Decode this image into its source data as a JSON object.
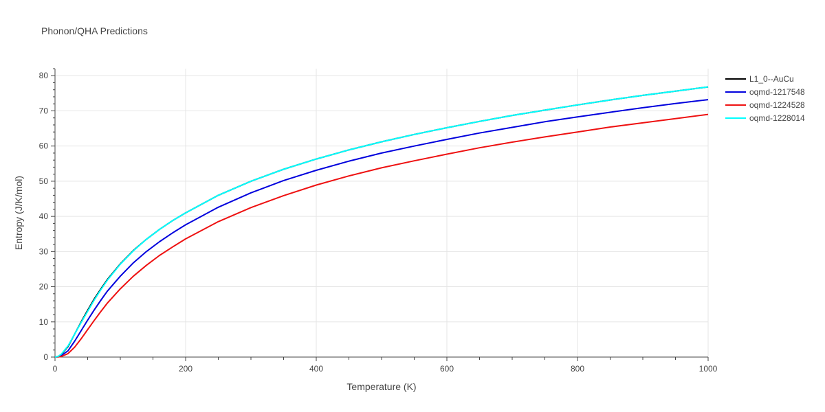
{
  "chart_data": {
    "type": "line",
    "title": "Phonon/QHA Predictions",
    "xlabel": "Temperature (K)",
    "ylabel": "Entropy (J/K/mol)",
    "xlim": [
      0,
      1000
    ],
    "ylim": [
      0,
      82
    ],
    "xticks": [
      0,
      200,
      400,
      600,
      800,
      1000
    ],
    "yticks": [
      0,
      10,
      20,
      30,
      40,
      50,
      60,
      70,
      80
    ],
    "xtick_labels": [
      "0",
      "200",
      "400",
      "600",
      "800",
      "1000"
    ],
    "ytick_labels": [
      "0",
      "10",
      "20",
      "30",
      "40",
      "50",
      "60",
      "70",
      "80"
    ],
    "grid": true,
    "legend_position": "top-right",
    "series": [
      {
        "name": "L1_0--AuCu",
        "color": "#000000",
        "x": [
          0,
          5,
          10,
          20,
          30,
          40,
          50,
          60,
          70,
          80,
          100,
          120,
          140,
          160,
          180,
          200,
          250,
          300,
          350,
          400,
          450,
          500,
          550,
          600,
          650,
          700,
          750,
          800,
          850,
          900,
          950,
          1000
        ],
        "y": [
          0,
          0.2,
          0.8,
          3.0,
          6.5,
          10.0,
          13.3,
          16.5,
          19.3,
          22.0,
          26.5,
          30.3,
          33.5,
          36.3,
          38.8,
          41.0,
          46.0,
          50.0,
          53.4,
          56.3,
          58.9,
          61.2,
          63.3,
          65.2,
          67.0,
          68.7,
          70.2,
          71.7,
          73.1,
          74.4,
          75.6,
          76.8
        ]
      },
      {
        "name": "oqmd-1217548",
        "color": "#0000dd",
        "x": [
          0,
          5,
          10,
          20,
          30,
          40,
          50,
          60,
          70,
          80,
          100,
          120,
          140,
          160,
          180,
          200,
          250,
          300,
          350,
          400,
          450,
          500,
          550,
          600,
          650,
          700,
          750,
          800,
          850,
          900,
          950,
          1000
        ],
        "y": [
          0,
          0.1,
          0.5,
          1.8,
          4.5,
          7.5,
          10.5,
          13.4,
          16.1,
          18.7,
          23.0,
          26.8,
          30.0,
          32.8,
          35.3,
          37.6,
          42.6,
          46.7,
          50.2,
          53.1,
          55.7,
          58.0,
          60.0,
          61.9,
          63.7,
          65.3,
          66.9,
          68.3,
          69.6,
          70.9,
          72.1,
          73.2
        ]
      },
      {
        "name": "oqmd-1224528",
        "color": "#ee1111",
        "x": [
          0,
          5,
          10,
          20,
          30,
          40,
          50,
          60,
          70,
          80,
          100,
          120,
          140,
          160,
          180,
          200,
          250,
          300,
          350,
          400,
          450,
          500,
          550,
          600,
          650,
          700,
          750,
          800,
          850,
          900,
          950,
          1000
        ],
        "y": [
          0,
          0.05,
          0.2,
          1.0,
          2.8,
          5.2,
          7.8,
          10.4,
          12.9,
          15.3,
          19.4,
          23.0,
          26.1,
          28.9,
          31.3,
          33.6,
          38.5,
          42.5,
          45.9,
          48.9,
          51.5,
          53.8,
          55.8,
          57.7,
          59.5,
          61.1,
          62.6,
          64.0,
          65.4,
          66.6,
          67.8,
          69.0
        ]
      },
      {
        "name": "oqmd-1228014",
        "color": "#00ffff",
        "x": [
          0,
          5,
          10,
          20,
          30,
          40,
          50,
          60,
          70,
          80,
          100,
          120,
          140,
          160,
          180,
          200,
          250,
          300,
          350,
          400,
          450,
          500,
          550,
          600,
          650,
          700,
          750,
          800,
          850,
          900,
          950,
          1000
        ],
        "y": [
          0,
          0.2,
          0.9,
          3.2,
          6.5,
          9.8,
          13.0,
          16.2,
          19.1,
          21.8,
          26.4,
          30.2,
          33.5,
          36.3,
          38.8,
          41.0,
          46.0,
          50.0,
          53.4,
          56.3,
          58.9,
          61.2,
          63.3,
          65.2,
          67.0,
          68.7,
          70.2,
          71.7,
          73.1,
          74.4,
          75.6,
          76.8
        ]
      }
    ]
  }
}
